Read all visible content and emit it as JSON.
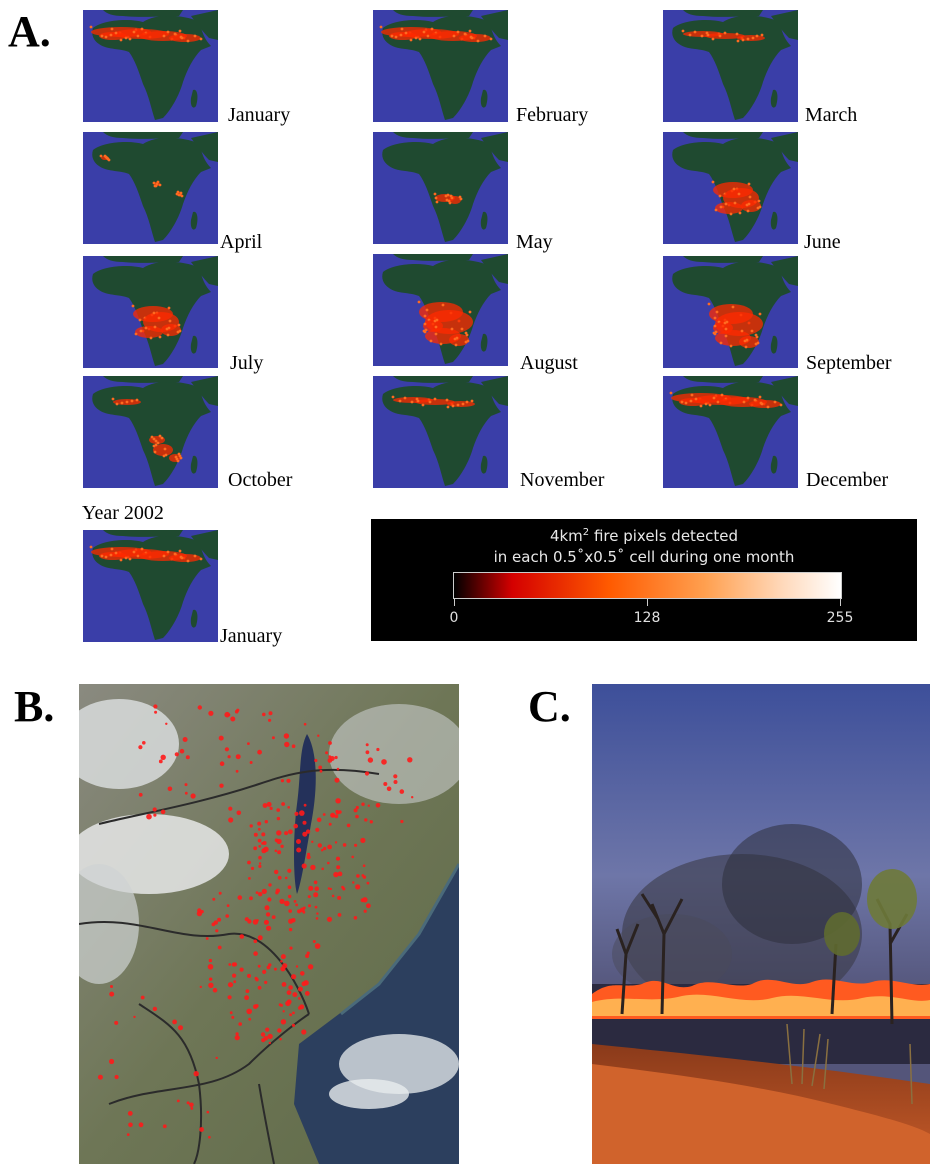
{
  "panels": {
    "a_label": "A.",
    "b_label": "B.",
    "c_label": "C."
  },
  "monthly_maps": [
    {
      "month": "January",
      "fire": "north"
    },
    {
      "month": "February",
      "fire": "north"
    },
    {
      "month": "March",
      "fire": "north-light"
    },
    {
      "month": "April",
      "fire": "sparse"
    },
    {
      "month": "May",
      "fire": "central-light"
    },
    {
      "month": "June",
      "fire": "south"
    },
    {
      "month": "July",
      "fire": "south"
    },
    {
      "month": "August",
      "fire": "south-heavy"
    },
    {
      "month": "September",
      "fire": "south-heavy"
    },
    {
      "month": "October",
      "fire": "mixed"
    },
    {
      "month": "November",
      "fire": "north-light"
    },
    {
      "month": "December",
      "fire": "north"
    }
  ],
  "year_label": "Year 2002",
  "extra_map": {
    "month": "January",
    "fire": "north"
  },
  "legend": {
    "title_part1": "4km",
    "title_sup": "2",
    "title_part2": " fire pixels detected",
    "subtitle": "in each 0.5˚x0.5˚ cell during one month",
    "tick_min": "0",
    "tick_mid": "128",
    "tick_max": "255",
    "colors": [
      "#000000",
      "#d40000",
      "#ff5a00",
      "#ffa050",
      "#ffd9bb",
      "#ffffff"
    ]
  },
  "colors": {
    "ocean": "#3a3ea8",
    "land": "#1f4a30",
    "fire": "#ff2a00"
  }
}
